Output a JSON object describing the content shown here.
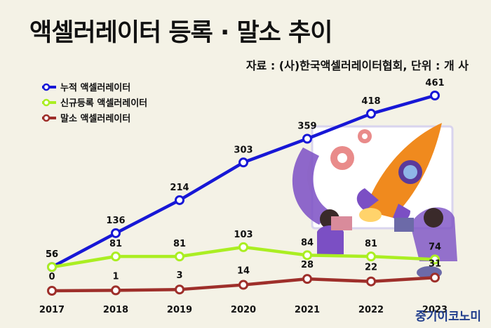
{
  "header": {
    "title": "액셀러레이터 등록 · 말소 추이",
    "source": "자료 : (사)한국액셀러레이터협회, 단위 : 개 사"
  },
  "brand": {
    "name": "중기이코노미",
    "color": "#1f3c8c"
  },
  "illustration": {
    "icon": "rocket-launch-illustration",
    "accent": "#f08a1e",
    "secondary": "#7b4fc4"
  },
  "chart_data": {
    "type": "line",
    "title": "액셀러레이터 등록 · 말소 추이",
    "categories": [
      "2017",
      "2018",
      "2019",
      "2020",
      "2021",
      "2022",
      "2023"
    ],
    "legend_position": "top-left",
    "grid": false,
    "series": [
      {
        "name": "누적 액셀러레이터",
        "color": "#1717d6",
        "values": [
          56,
          136,
          214,
          303,
          359,
          418,
          461
        ]
      },
      {
        "name": "신규등록 액셀러레이터",
        "color": "#aaee22",
        "values": [
          56,
          81,
          81,
          103,
          84,
          81,
          74
        ]
      },
      {
        "name": "말소 액셀러레이터",
        "color": "#9e2f2a",
        "values": [
          0,
          1,
          3,
          14,
          28,
          22,
          31
        ]
      }
    ]
  }
}
